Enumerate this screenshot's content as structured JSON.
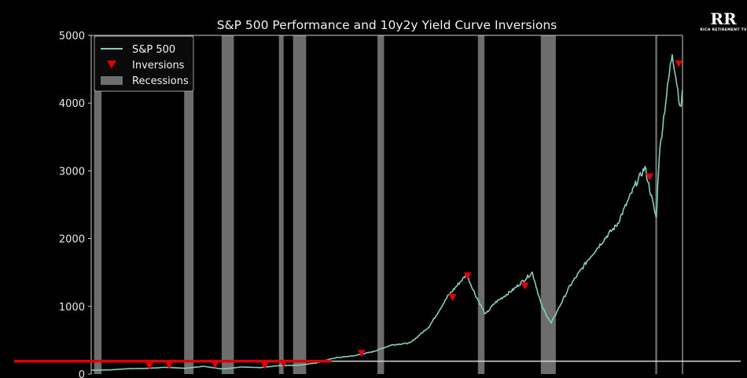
{
  "chart_data": {
    "type": "line",
    "title": "S&P 500 Performance and 10y2y Yield Curve Inversions",
    "xlabel": "",
    "ylabel": "",
    "ylim": [
      0,
      5000
    ],
    "xlim": [
      1960,
      2023
    ],
    "y_ticks": [
      "0",
      "1000",
      "2000",
      "3000",
      "4000",
      "5000"
    ],
    "grid": false,
    "legend_position": "top-left",
    "legend": {
      "sp500": "S&P 500",
      "inversions": "Inversions",
      "recessions": "Recessions"
    },
    "series": [
      {
        "name": "S&P 500",
        "color": "#86cbbe",
        "x": [
          1960,
          1962,
          1964,
          1966,
          1968,
          1970,
          1972,
          1974,
          1976,
          1978,
          1980,
          1982,
          1984,
          1986,
          1988,
          1990,
          1992,
          1994,
          1996,
          1998,
          2000,
          2001,
          2002,
          2003,
          2005,
          2007,
          2008,
          2009,
          2011,
          2013,
          2015,
          2016,
          2018,
          2019,
          2020.2,
          2020.5,
          2021,
          2021.9,
          2022.4,
          2022.8,
          2023
        ],
        "y": [
          58,
          62,
          80,
          85,
          100,
          85,
          115,
          75,
          105,
          95,
          125,
          130,
          165,
          240,
          270,
          330,
          430,
          460,
          700,
          1150,
          1470,
          1150,
          880,
          1050,
          1250,
          1500,
          1000,
          750,
          1300,
          1700,
          2050,
          2200,
          2800,
          3050,
          2300,
          3200,
          3800,
          4750,
          4300,
          3900,
          4200
        ]
      }
    ],
    "inversions": {
      "name": "Inversions",
      "color": "#e00000",
      "points": [
        {
          "x": 1966.2,
          "y": 90
        },
        {
          "x": 1968.3,
          "y": 100
        },
        {
          "x": 1973.2,
          "y": 110
        },
        {
          "x": 1978.5,
          "y": 95
        },
        {
          "x": 1980.5,
          "y": 120
        },
        {
          "x": 1988.8,
          "y": 275
        },
        {
          "x": 1998.5,
          "y": 1100
        },
        {
          "x": 2000.1,
          "y": 1420
        },
        {
          "x": 2006.2,
          "y": 1270
        },
        {
          "x": 2019.5,
          "y": 2880
        },
        {
          "x": 2022.6,
          "y": 4550
        }
      ]
    },
    "recessions": {
      "name": "Recessions",
      "color": "#808080",
      "periods": [
        [
          1960.3,
          1961.1
        ],
        [
          1969.9,
          1970.9
        ],
        [
          1973.9,
          1975.2
        ],
        [
          1980.0,
          1980.5
        ],
        [
          1981.5,
          1982.9
        ],
        [
          1990.5,
          1991.2
        ],
        [
          2001.2,
          2001.9
        ],
        [
          2007.9,
          2009.5
        ],
        [
          2020.1,
          2020.3
        ]
      ]
    },
    "reference_line": {
      "color": "#e00000",
      "y": 190
    }
  },
  "branding": {
    "logo_mark": "RR",
    "logo_text": "RICH RETIREMENT TV"
  }
}
